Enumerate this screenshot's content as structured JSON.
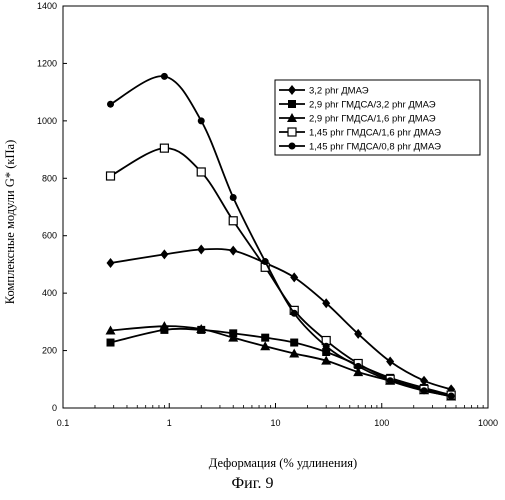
{
  "chart_data": {
    "type": "line",
    "xlabel": "Деформация (% удлинения)",
    "ylabel": "Комплексные модули G* (кПа)",
    "xscale": "log",
    "xlim": [
      0.1,
      1000
    ],
    "ylim": [
      0,
      1400
    ],
    "xticks": [
      "0.1",
      "1",
      "10",
      "100",
      "1000"
    ],
    "yticks": [
      "0",
      "200",
      "400",
      "600",
      "800",
      "1000",
      "1200",
      "1400"
    ],
    "grid": false,
    "legend_position": "upper-right",
    "x": [
      0.28,
      0.9,
      2,
      4,
      8,
      15,
      30,
      60,
      120,
      250,
      450
    ],
    "series": [
      {
        "name": "3,2 phr ДМАЭ",
        "marker": "diamond",
        "values": [
          505,
          535,
          552,
          548,
          505,
          455,
          365,
          258,
          162,
          95,
          65
        ]
      },
      {
        "name": "2,9 phr ГМДСА/3,2 phr ДМАЭ",
        "marker": "square",
        "values": [
          228,
          272,
          272,
          260,
          245,
          228,
          195,
          150,
          105,
          70,
          45
        ]
      },
      {
        "name": "2,9 phr ГМДСА/1,6 phr ДМАЭ",
        "marker": "triangle",
        "values": [
          270,
          285,
          275,
          245,
          215,
          190,
          165,
          125,
          95,
          62,
          40
        ]
      },
      {
        "name": "1,45 phr ГМДСА/1,6 phr ДМАЭ",
        "marker": "open-square",
        "values": [
          808,
          905,
          822,
          652,
          490,
          340,
          235,
          155,
          100,
          65,
          45
        ]
      },
      {
        "name": "1,45 phr ГМДСА/0,8 phr ДМАЭ",
        "marker": "circle",
        "values": [
          1058,
          1155,
          1000,
          733,
          510,
          330,
          215,
          145,
          95,
          60,
          42
        ]
      }
    ]
  },
  "caption": "Фиг. 9"
}
